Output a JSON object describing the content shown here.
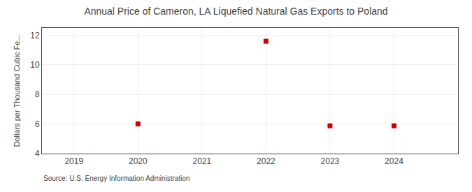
{
  "chart_data": {
    "type": "scatter",
    "title": "Annual Price of Cameron, LA Liquefied Natural Gas Exports to Poland",
    "ylabel": "Dollars per Thousand Cubic Fe...",
    "annotations": [
      "Source: U.S. Energy Information Administration"
    ],
    "x": [
      2020,
      2022,
      2023,
      2024
    ],
    "values": [
      6.01,
      11.6,
      5.88,
      5.88
    ],
    "color": "#cc0000",
    "marker": "square",
    "xlim": [
      2018.5,
      2025.0
    ],
    "ylim": [
      4,
      12.5
    ],
    "xticks": [
      2019,
      2020,
      2021,
      2022,
      2023,
      2024
    ],
    "yticks": [
      4,
      6,
      8,
      10,
      12
    ],
    "grid": true
  }
}
